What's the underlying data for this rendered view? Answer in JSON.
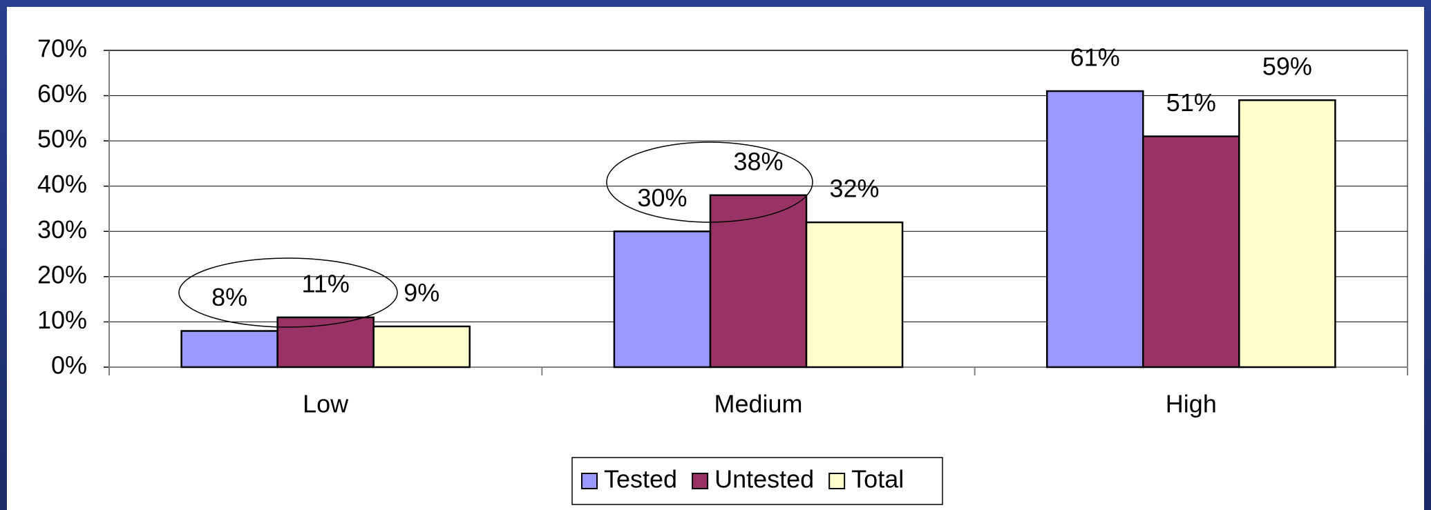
{
  "chart_data": {
    "type": "bar",
    "categories": [
      "Low",
      "Medium",
      "High"
    ],
    "series": [
      {
        "name": "Tested",
        "color": "#9999ff",
        "values": [
          8,
          30,
          61
        ],
        "value_labels": [
          "8%",
          "30%",
          "61%"
        ]
      },
      {
        "name": "Untested",
        "color": "#993366",
        "values": [
          11,
          38,
          51
        ],
        "value_labels": [
          "11%",
          "38%",
          "51%"
        ]
      },
      {
        "name": "Total",
        "color": "#ffffcc",
        "values": [
          9,
          32,
          59
        ],
        "value_labels": [
          "9%",
          "32%",
          "59%"
        ]
      }
    ],
    "ylim": [
      0,
      70
    ],
    "yticks": [
      {
        "value": 0,
        "label": "0%"
      },
      {
        "value": 10,
        "label": "10%"
      },
      {
        "value": 20,
        "label": "20%"
      },
      {
        "value": 30,
        "label": "30%"
      },
      {
        "value": 40,
        "label": "40%"
      },
      {
        "value": 50,
        "label": "50%"
      },
      {
        "value": 60,
        "label": "60%"
      },
      {
        "value": 70,
        "label": "70%"
      }
    ],
    "grid": true,
    "legend": "bottom"
  }
}
